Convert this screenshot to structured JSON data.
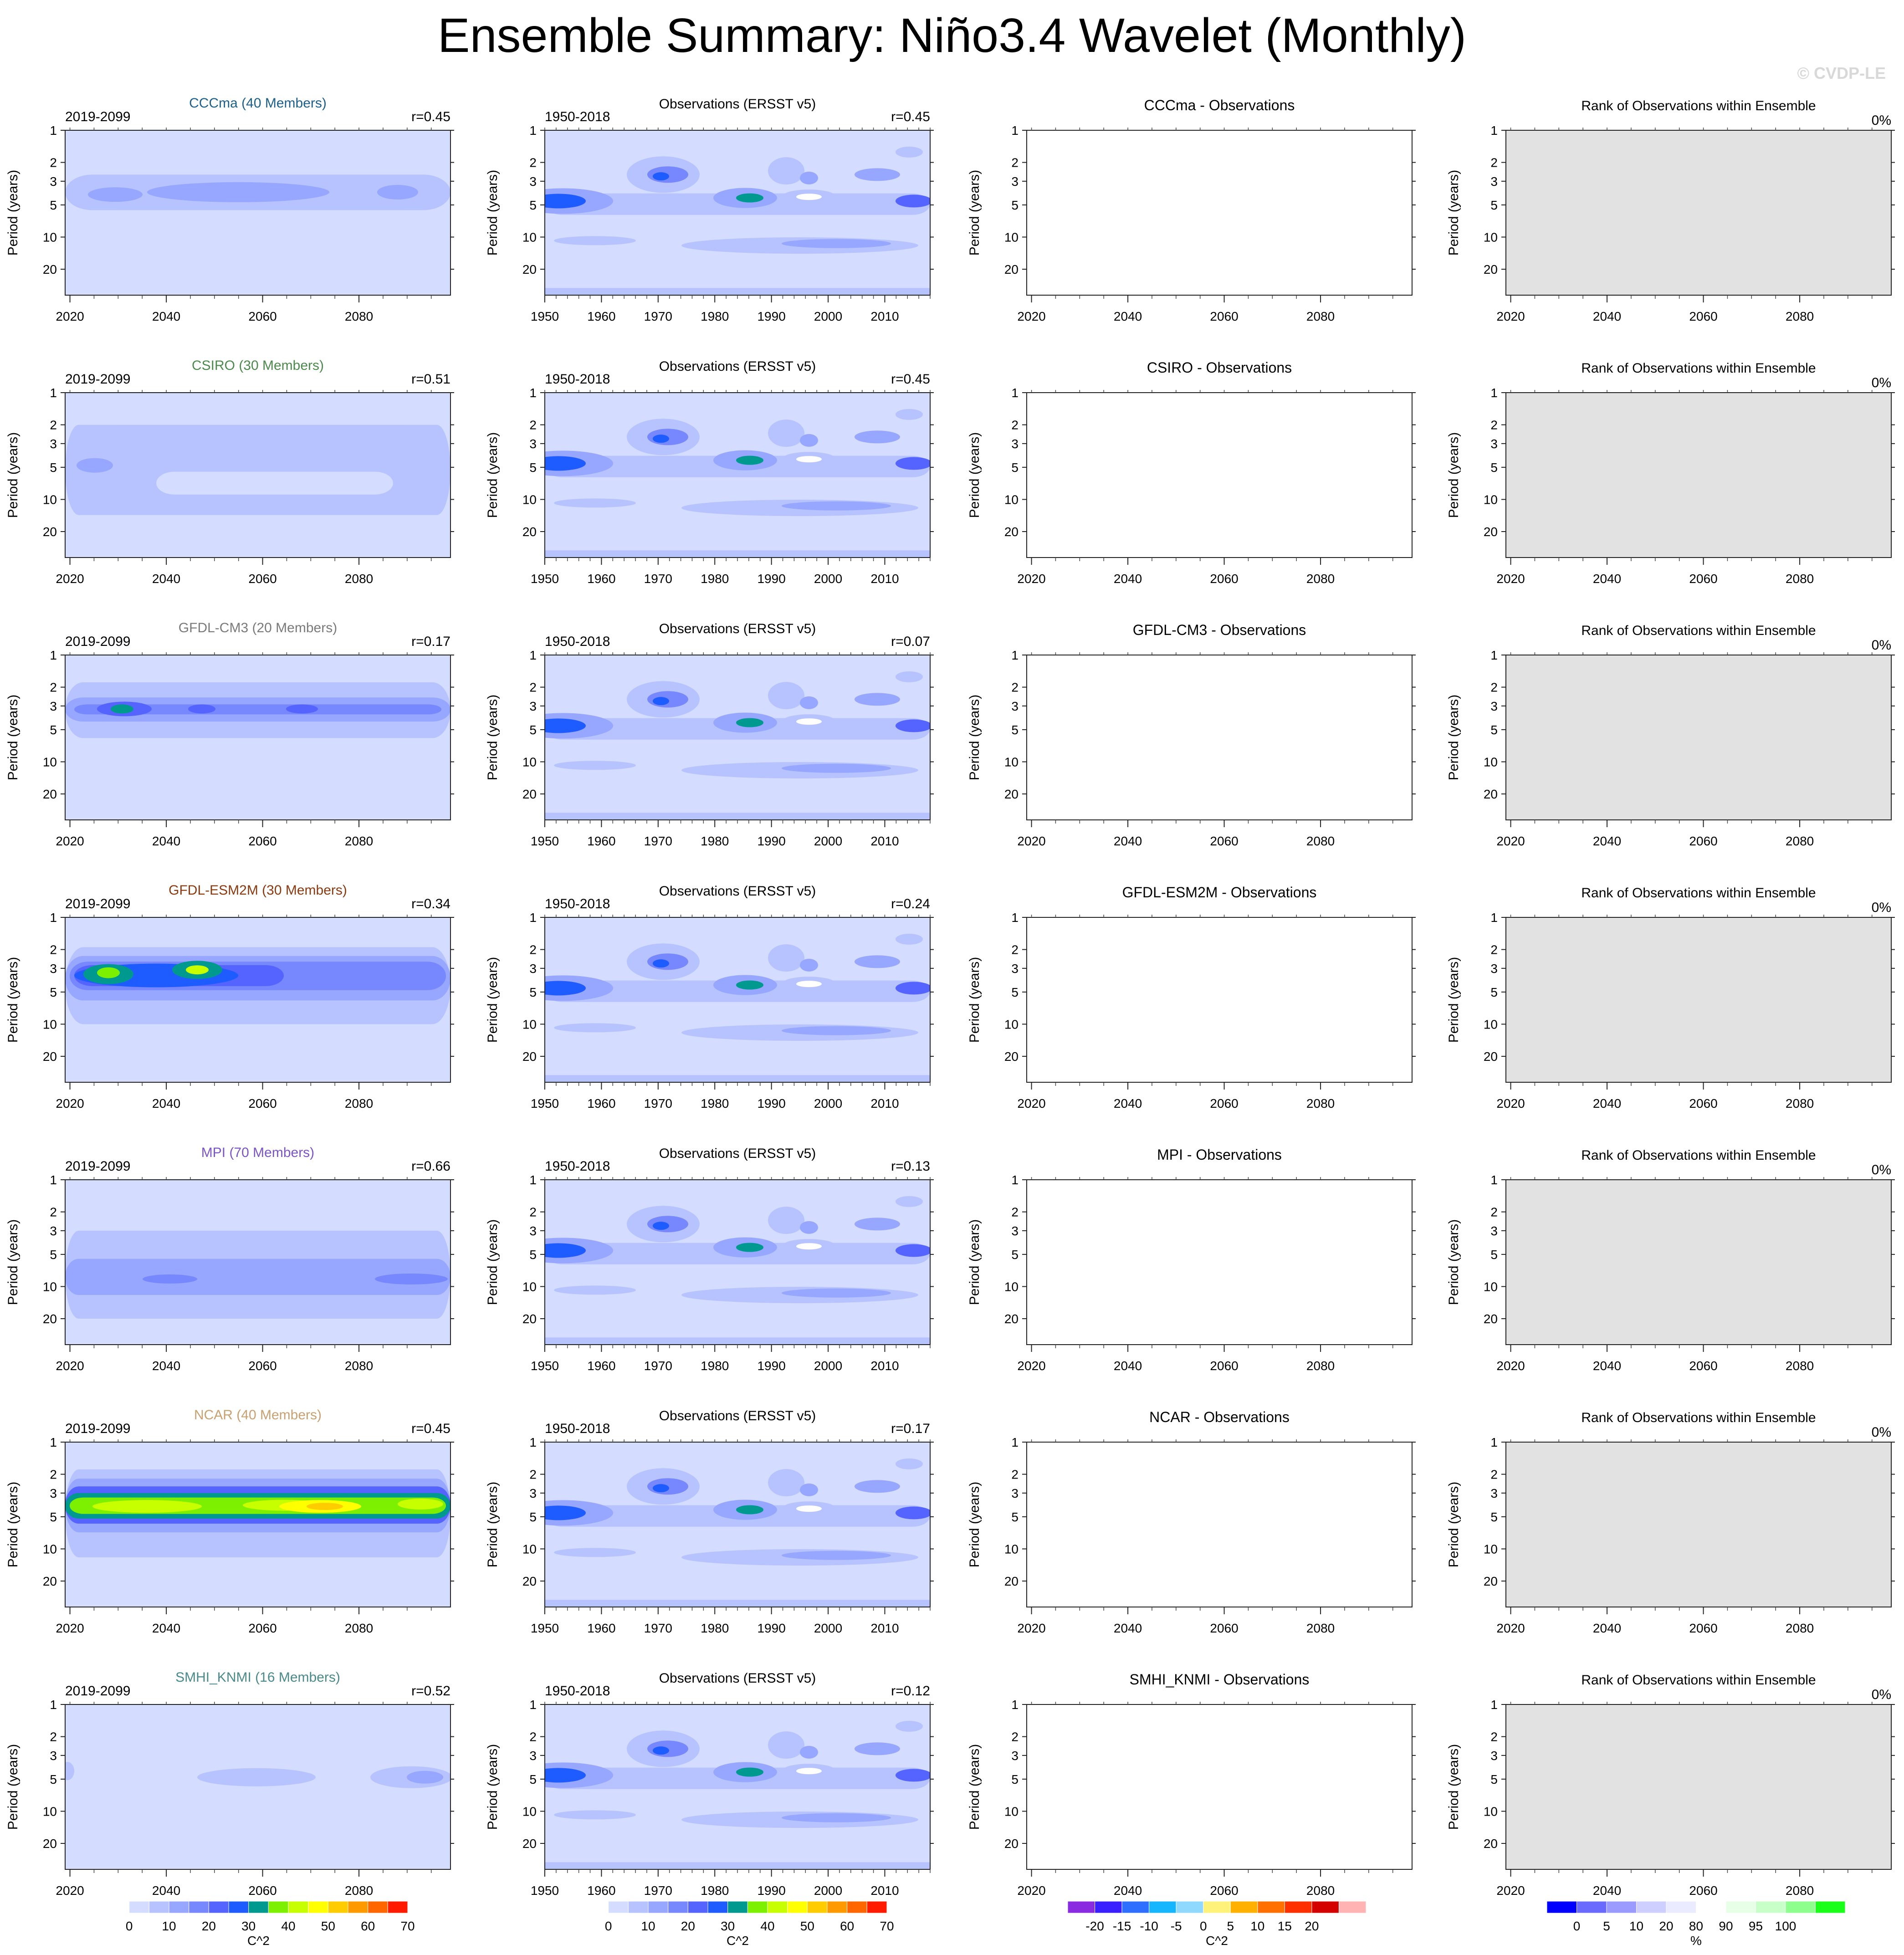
{
  "title": "Ensemble Summary: Niño3.4 Wavelet (Monthly)",
  "watermark": "© CVDP-LE",
  "chart_data": {
    "type": "heatmap",
    "ylabel": "Period (years)",
    "y_ticks": [
      1,
      2,
      3,
      5,
      10,
      20
    ],
    "y_log": true,
    "ylim": [
      1,
      35
    ],
    "model_xticks": [
      2020,
      2040,
      2060,
      2080
    ],
    "model_xlim": [
      2019,
      2099
    ],
    "obs_xticks": [
      1950,
      1960,
      1970,
      1980,
      1990,
      2000,
      2010
    ],
    "obs_xlim": [
      1950,
      2018
    ],
    "model_period": "2019-2099",
    "obs_period": "1950-2018",
    "obs_title": "Observations (ERSST v5)",
    "rank_title": "Rank of Observations within Ensemble",
    "rank_value": "0%",
    "diff_suffix": " - Observations",
    "rows": [
      {
        "model": "CCCma",
        "members": "CCCma (40 Members)",
        "color": "#1b5f8a",
        "r_model": "r=0.45",
        "r_obs": "r=0.45",
        "diff_title": "CCCma - Observations"
      },
      {
        "model": "CSIRO",
        "members": "CSIRO (30 Members)",
        "color": "#4c8a4c",
        "r_model": "r=0.51",
        "r_obs": "r=0.45",
        "diff_title": "CSIRO - Observations"
      },
      {
        "model": "GFDL-CM3",
        "members": "GFDL-CM3 (20 Members)",
        "color": "#7a7a7a",
        "r_model": "r=0.17",
        "r_obs": "r=0.07",
        "diff_title": "GFDL-CM3 - Observations"
      },
      {
        "model": "GFDL-ESM2M",
        "members": "GFDL-ESM2M (30 Members)",
        "color": "#8b3a10",
        "r_model": "r=0.34",
        "r_obs": "r=0.24",
        "diff_title": "GFDL-ESM2M - Observations"
      },
      {
        "model": "MPI",
        "members": "MPI (70 Members)",
        "color": "#7b55c8",
        "r_model": "r=0.66",
        "r_obs": "r=0.13",
        "diff_title": "MPI - Observations"
      },
      {
        "model": "NCAR",
        "members": "NCAR (40 Members)",
        "color": "#c9a070",
        "r_model": "r=0.45",
        "r_obs": "r=0.17",
        "diff_title": "NCAR - Observations"
      },
      {
        "model": "SMHI_KNMI",
        "members": "SMHI_KNMI (16 Members)",
        "color": "#4a8a8a",
        "r_model": "r=0.52",
        "r_obs": "r=0.12",
        "diff_title": "SMHI_KNMI - Observations"
      }
    ],
    "colorbars": [
      {
        "unit": "C^2",
        "labels": [
          "0",
          "10",
          "20",
          "30",
          "40",
          "50",
          "60",
          "70"
        ],
        "colors": [
          "#ffffff",
          "#d4dcff",
          "#b6c3ff",
          "#97a6ff",
          "#7788ff",
          "#5563ff",
          "#1f5cff",
          "#009990",
          "#7cf000",
          "#c8ff00",
          "#ffff00",
          "#ffcc00",
          "#ff9900",
          "#ff6600",
          "#ff1a00"
        ]
      },
      {
        "unit": "C^2",
        "labels": [
          "0",
          "10",
          "20",
          "30",
          "40",
          "50",
          "60",
          "70"
        ],
        "colors": [
          "#ffffff",
          "#d4dcff",
          "#b6c3ff",
          "#97a6ff",
          "#7788ff",
          "#5563ff",
          "#1f5cff",
          "#009990",
          "#7cf000",
          "#c8ff00",
          "#ffff00",
          "#ffcc00",
          "#ff9900",
          "#ff6600",
          "#ff1a00"
        ]
      },
      {
        "unit": "C^2",
        "labels": [
          "-20",
          "-15",
          "-10",
          "-5",
          "0",
          "5",
          "10",
          "15",
          "20"
        ],
        "colors": [
          "#8a2be2",
          "#3a20ff",
          "#2f6fff",
          "#16b6ff",
          "#8fd9ff",
          "#fff27a",
          "#ffb000",
          "#ff7000",
          "#ff3000",
          "#d40000",
          "#ffb3b3"
        ]
      },
      {
        "unit": "%",
        "labels": [
          "0",
          "5",
          "10",
          "20",
          "80",
          "90",
          "95",
          "100"
        ],
        "colors": [
          "#0000ff",
          "#6a6aff",
          "#9b9bff",
          "#cfcfff",
          "#ebebff",
          "#ffffff",
          "#e6ffe6",
          "#c8ffc8",
          "#8cff8c",
          "#1aff1a"
        ]
      }
    ]
  }
}
